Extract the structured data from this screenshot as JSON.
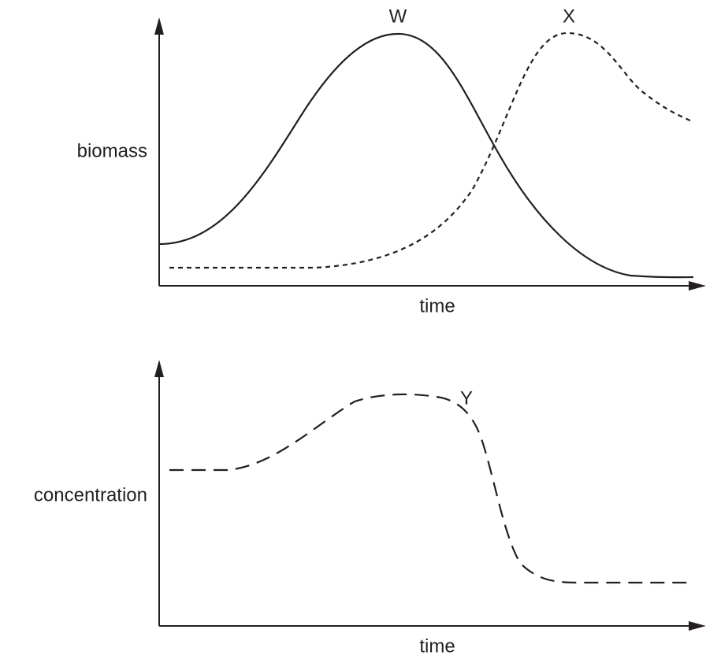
{
  "panels": [
    {
      "y_label": "biomass",
      "x_label": "time",
      "curve_labels": [
        "W",
        "X"
      ]
    },
    {
      "y_label": "concentration",
      "x_label": "time",
      "curve_labels": [
        "Y"
      ]
    }
  ]
}
